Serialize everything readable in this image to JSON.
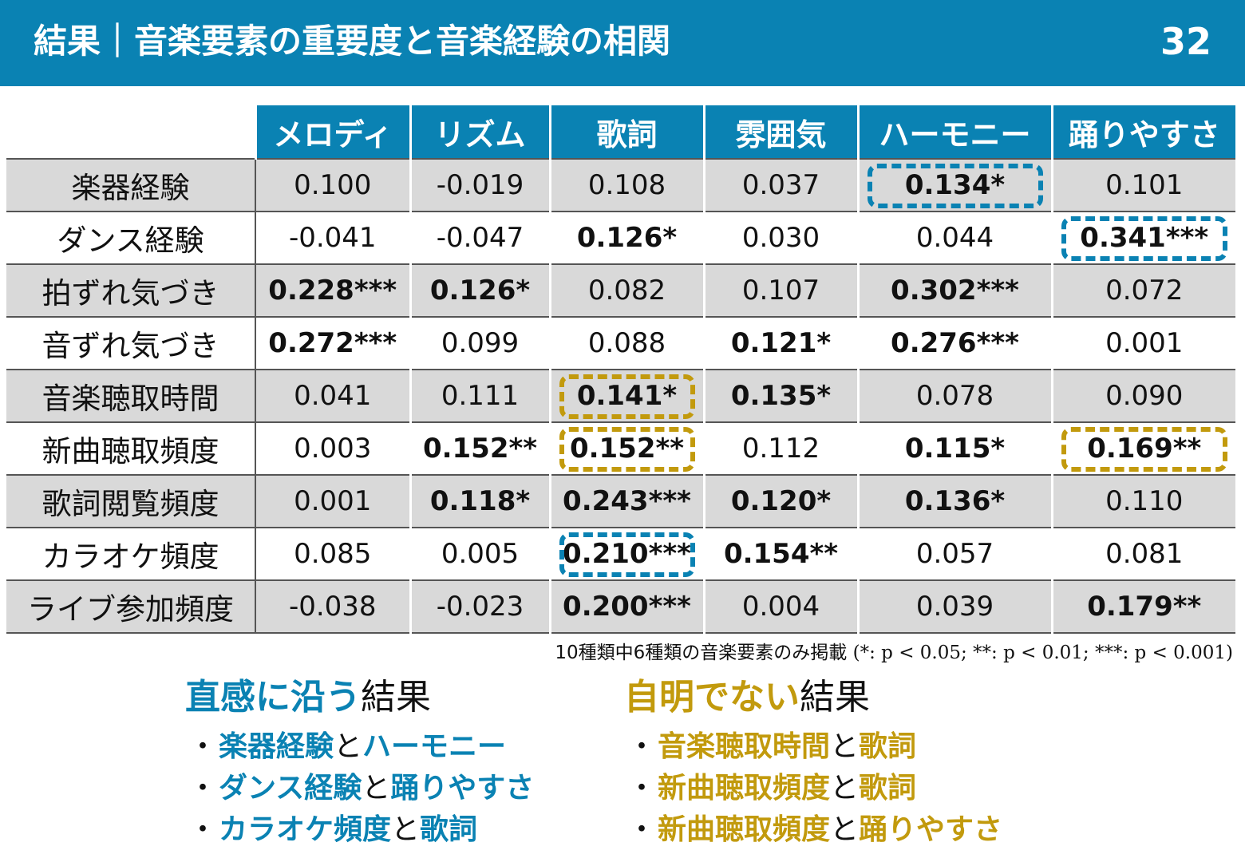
{
  "header": {
    "title": "結果｜音楽要素の重要度と音楽経験の相関",
    "page_number": "32"
  },
  "table": {
    "columns": [
      "メロディ",
      "リズム",
      "歌詞",
      "雰囲気",
      "ハーモニー",
      "踊りやすさ"
    ],
    "rows": [
      {
        "label": "楽器経験",
        "cells": [
          {
            "v": "0.100"
          },
          {
            "v": "-0.019"
          },
          {
            "v": "0.108"
          },
          {
            "v": "0.037"
          },
          {
            "v": "0.134*",
            "bold": true,
            "hl": "blue"
          },
          {
            "v": "0.101"
          }
        ]
      },
      {
        "label": "ダンス経験",
        "cells": [
          {
            "v": "-0.041"
          },
          {
            "v": "-0.047"
          },
          {
            "v": "0.126*",
            "bold": true
          },
          {
            "v": "0.030"
          },
          {
            "v": "0.044"
          },
          {
            "v": "0.341***",
            "bold": true,
            "hl": "blue"
          }
        ]
      },
      {
        "label": "拍ずれ気づき",
        "cells": [
          {
            "v": "0.228***",
            "bold": true
          },
          {
            "v": "0.126*",
            "bold": true
          },
          {
            "v": "0.082"
          },
          {
            "v": "0.107"
          },
          {
            "v": "0.302***",
            "bold": true
          },
          {
            "v": "0.072"
          }
        ]
      },
      {
        "label": "音ずれ気づき",
        "cells": [
          {
            "v": "0.272***",
            "bold": true
          },
          {
            "v": "0.099"
          },
          {
            "v": "0.088"
          },
          {
            "v": "0.121*",
            "bold": true
          },
          {
            "v": "0.276***",
            "bold": true
          },
          {
            "v": "0.001"
          }
        ]
      },
      {
        "label": "音楽聴取時間",
        "cells": [
          {
            "v": "0.041"
          },
          {
            "v": "0.111"
          },
          {
            "v": "0.141*",
            "bold": true,
            "hl": "gold"
          },
          {
            "v": "0.135*",
            "bold": true
          },
          {
            "v": "0.078"
          },
          {
            "v": "0.090"
          }
        ]
      },
      {
        "label": "新曲聴取頻度",
        "cells": [
          {
            "v": "0.003"
          },
          {
            "v": "0.152**",
            "bold": true
          },
          {
            "v": "0.152**",
            "bold": true,
            "hl": "gold"
          },
          {
            "v": "0.112"
          },
          {
            "v": "0.115*",
            "bold": true
          },
          {
            "v": "0.169**",
            "bold": true,
            "hl": "gold"
          }
        ]
      },
      {
        "label": "歌詞閲覧頻度",
        "cells": [
          {
            "v": "0.001"
          },
          {
            "v": "0.118*",
            "bold": true
          },
          {
            "v": "0.243***",
            "bold": true
          },
          {
            "v": "0.120*",
            "bold": true
          },
          {
            "v": "0.136*",
            "bold": true
          },
          {
            "v": "0.110"
          }
        ]
      },
      {
        "label": "カラオケ頻度",
        "cells": [
          {
            "v": "0.085"
          },
          {
            "v": "0.005"
          },
          {
            "v": "0.210***",
            "bold": true,
            "hl": "blue"
          },
          {
            "v": "0.154**",
            "bold": true
          },
          {
            "v": "0.057"
          },
          {
            "v": "0.081"
          }
        ]
      },
      {
        "label": "ライブ参加頻度",
        "cells": [
          {
            "v": "-0.038"
          },
          {
            "v": "-0.023"
          },
          {
            "v": "0.200***",
            "bold": true
          },
          {
            "v": "0.004"
          },
          {
            "v": "0.039"
          },
          {
            "v": "0.179**",
            "bold": true
          }
        ]
      }
    ]
  },
  "footnote": {
    "text": "10種類中6種類の音楽要素のみ掲載",
    "legend": "(*: p < 0.05; **: p < 0.01; ***: p < 0.001)"
  },
  "intuitive": {
    "title_highlight": "直感に沿う",
    "title_rest": "結果",
    "items": [
      {
        "a": "楽器経験",
        "and": "と",
        "b": "ハーモニー"
      },
      {
        "a": "ダンス経験",
        "and": "と",
        "b": "踊りやすさ"
      },
      {
        "a": "カラオケ頻度",
        "and": "と",
        "b": "歌詞"
      }
    ]
  },
  "nonobvious": {
    "title_highlight": "自明でない",
    "title_rest": "結果",
    "items": [
      {
        "a": "音楽聴取時間",
        "and": "と",
        "b": "歌詞"
      },
      {
        "a": "新曲聴取頻度",
        "and": "と",
        "b": "歌詞"
      },
      {
        "a": "新曲聴取頻度",
        "and": "と",
        "b": "踊りやすさ"
      }
    ]
  },
  "colors": {
    "accent_blue": "#0a82b3",
    "accent_gold": "#c29a0d",
    "band_gray": "#d9d9d9"
  }
}
